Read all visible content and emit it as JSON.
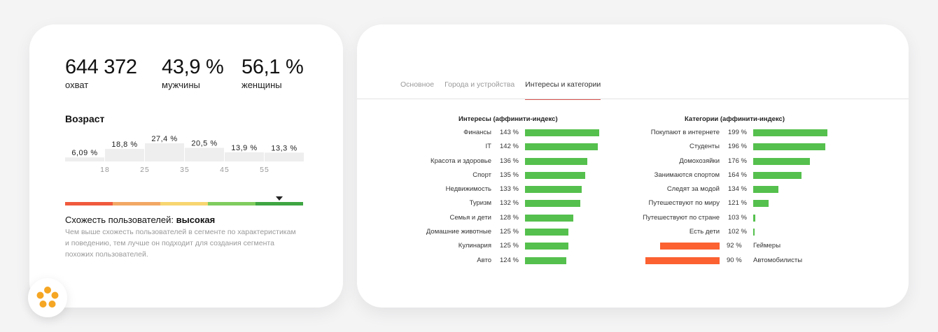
{
  "stats": [
    {
      "value": "644 372",
      "label": "охват"
    },
    {
      "value": "43,9 %",
      "label": "мужчины"
    },
    {
      "value": "56,1 %",
      "label": "женщины"
    }
  ],
  "age": {
    "title": "Возраст",
    "bars": [
      {
        "label": "6,09 %",
        "value": 6.09
      },
      {
        "label": "18,8 %",
        "value": 18.8
      },
      {
        "label": "27,4 %",
        "value": 27.4
      },
      {
        "label": "20,5 %",
        "value": 20.5
      },
      {
        "label": "13,9 %",
        "value": 13.9
      },
      {
        "label": "13,3 %",
        "value": 13.3
      }
    ],
    "ticks": [
      "18",
      "25",
      "35",
      "45",
      "55"
    ],
    "bar_color": "#eeeeee"
  },
  "similarity": {
    "scale_colors": [
      "#f05a3c",
      "#f3a865",
      "#f7d570",
      "#7fcc5e",
      "#3ea542"
    ],
    "level_index": 4,
    "title_prefix": "Схожесть пользователей: ",
    "title_value": "высокая",
    "description": "Чем выше схожесть пользователей в сегменте по характеристикам и поведению, тем лучше он подходит для создания сегмента похожих пользователей."
  },
  "tabs": [
    {
      "label": "Основное",
      "active": false
    },
    {
      "label": "Города и устройства",
      "active": false
    },
    {
      "label": "Интересы и категории",
      "active": true
    }
  ],
  "interests": {
    "title": "Интересы (аффинити-индекс)",
    "items": [
      {
        "name": "Финансы",
        "pct": "143 %",
        "value": 143
      },
      {
        "name": "IT",
        "pct": "142 %",
        "value": 142
      },
      {
        "name": "Красота и здоровье",
        "pct": "136 %",
        "value": 136
      },
      {
        "name": "Спорт",
        "pct": "135 %",
        "value": 135
      },
      {
        "name": "Недвижимость",
        "pct": "133 %",
        "value": 133
      },
      {
        "name": "Туризм",
        "pct": "132 %",
        "value": 132
      },
      {
        "name": "Семья и дети",
        "pct": "128 %",
        "value": 128
      },
      {
        "name": "Домашние животные",
        "pct": "125 %",
        "value": 125
      },
      {
        "name": "Кулинария",
        "pct": "125 %",
        "value": 125
      },
      {
        "name": "Авто",
        "pct": "124 %",
        "value": 124
      }
    ]
  },
  "categories": {
    "title": "Категории (аффинити-индекс)",
    "items": [
      {
        "name": "Покупают в интернете",
        "pct": "199 %",
        "value": 199
      },
      {
        "name": "Студенты",
        "pct": "196 %",
        "value": 196
      },
      {
        "name": "Домохозяйки",
        "pct": "176 %",
        "value": 176
      },
      {
        "name": "Занимаются спортом",
        "pct": "164 %",
        "value": 164
      },
      {
        "name": "Следят за модой",
        "pct": "134 %",
        "value": 134
      },
      {
        "name": "Путешествуют по миру",
        "pct": "121 %",
        "value": 121
      },
      {
        "name": "Путешествуют по стране",
        "pct": "103 %",
        "value": 103
      },
      {
        "name": "Есть дети",
        "pct": "102 %",
        "value": 102
      },
      {
        "name": "Геймеры",
        "pct": "92 %",
        "value": 92
      },
      {
        "name": "Автомобилисты",
        "pct": "90 %",
        "value": 90
      }
    ]
  },
  "colors": {
    "positive": "#55c04d",
    "negative": "#fb6131",
    "accent": "#d9534f",
    "logo": "#f5a623"
  },
  "logo_icon": "flower-logo-icon"
}
